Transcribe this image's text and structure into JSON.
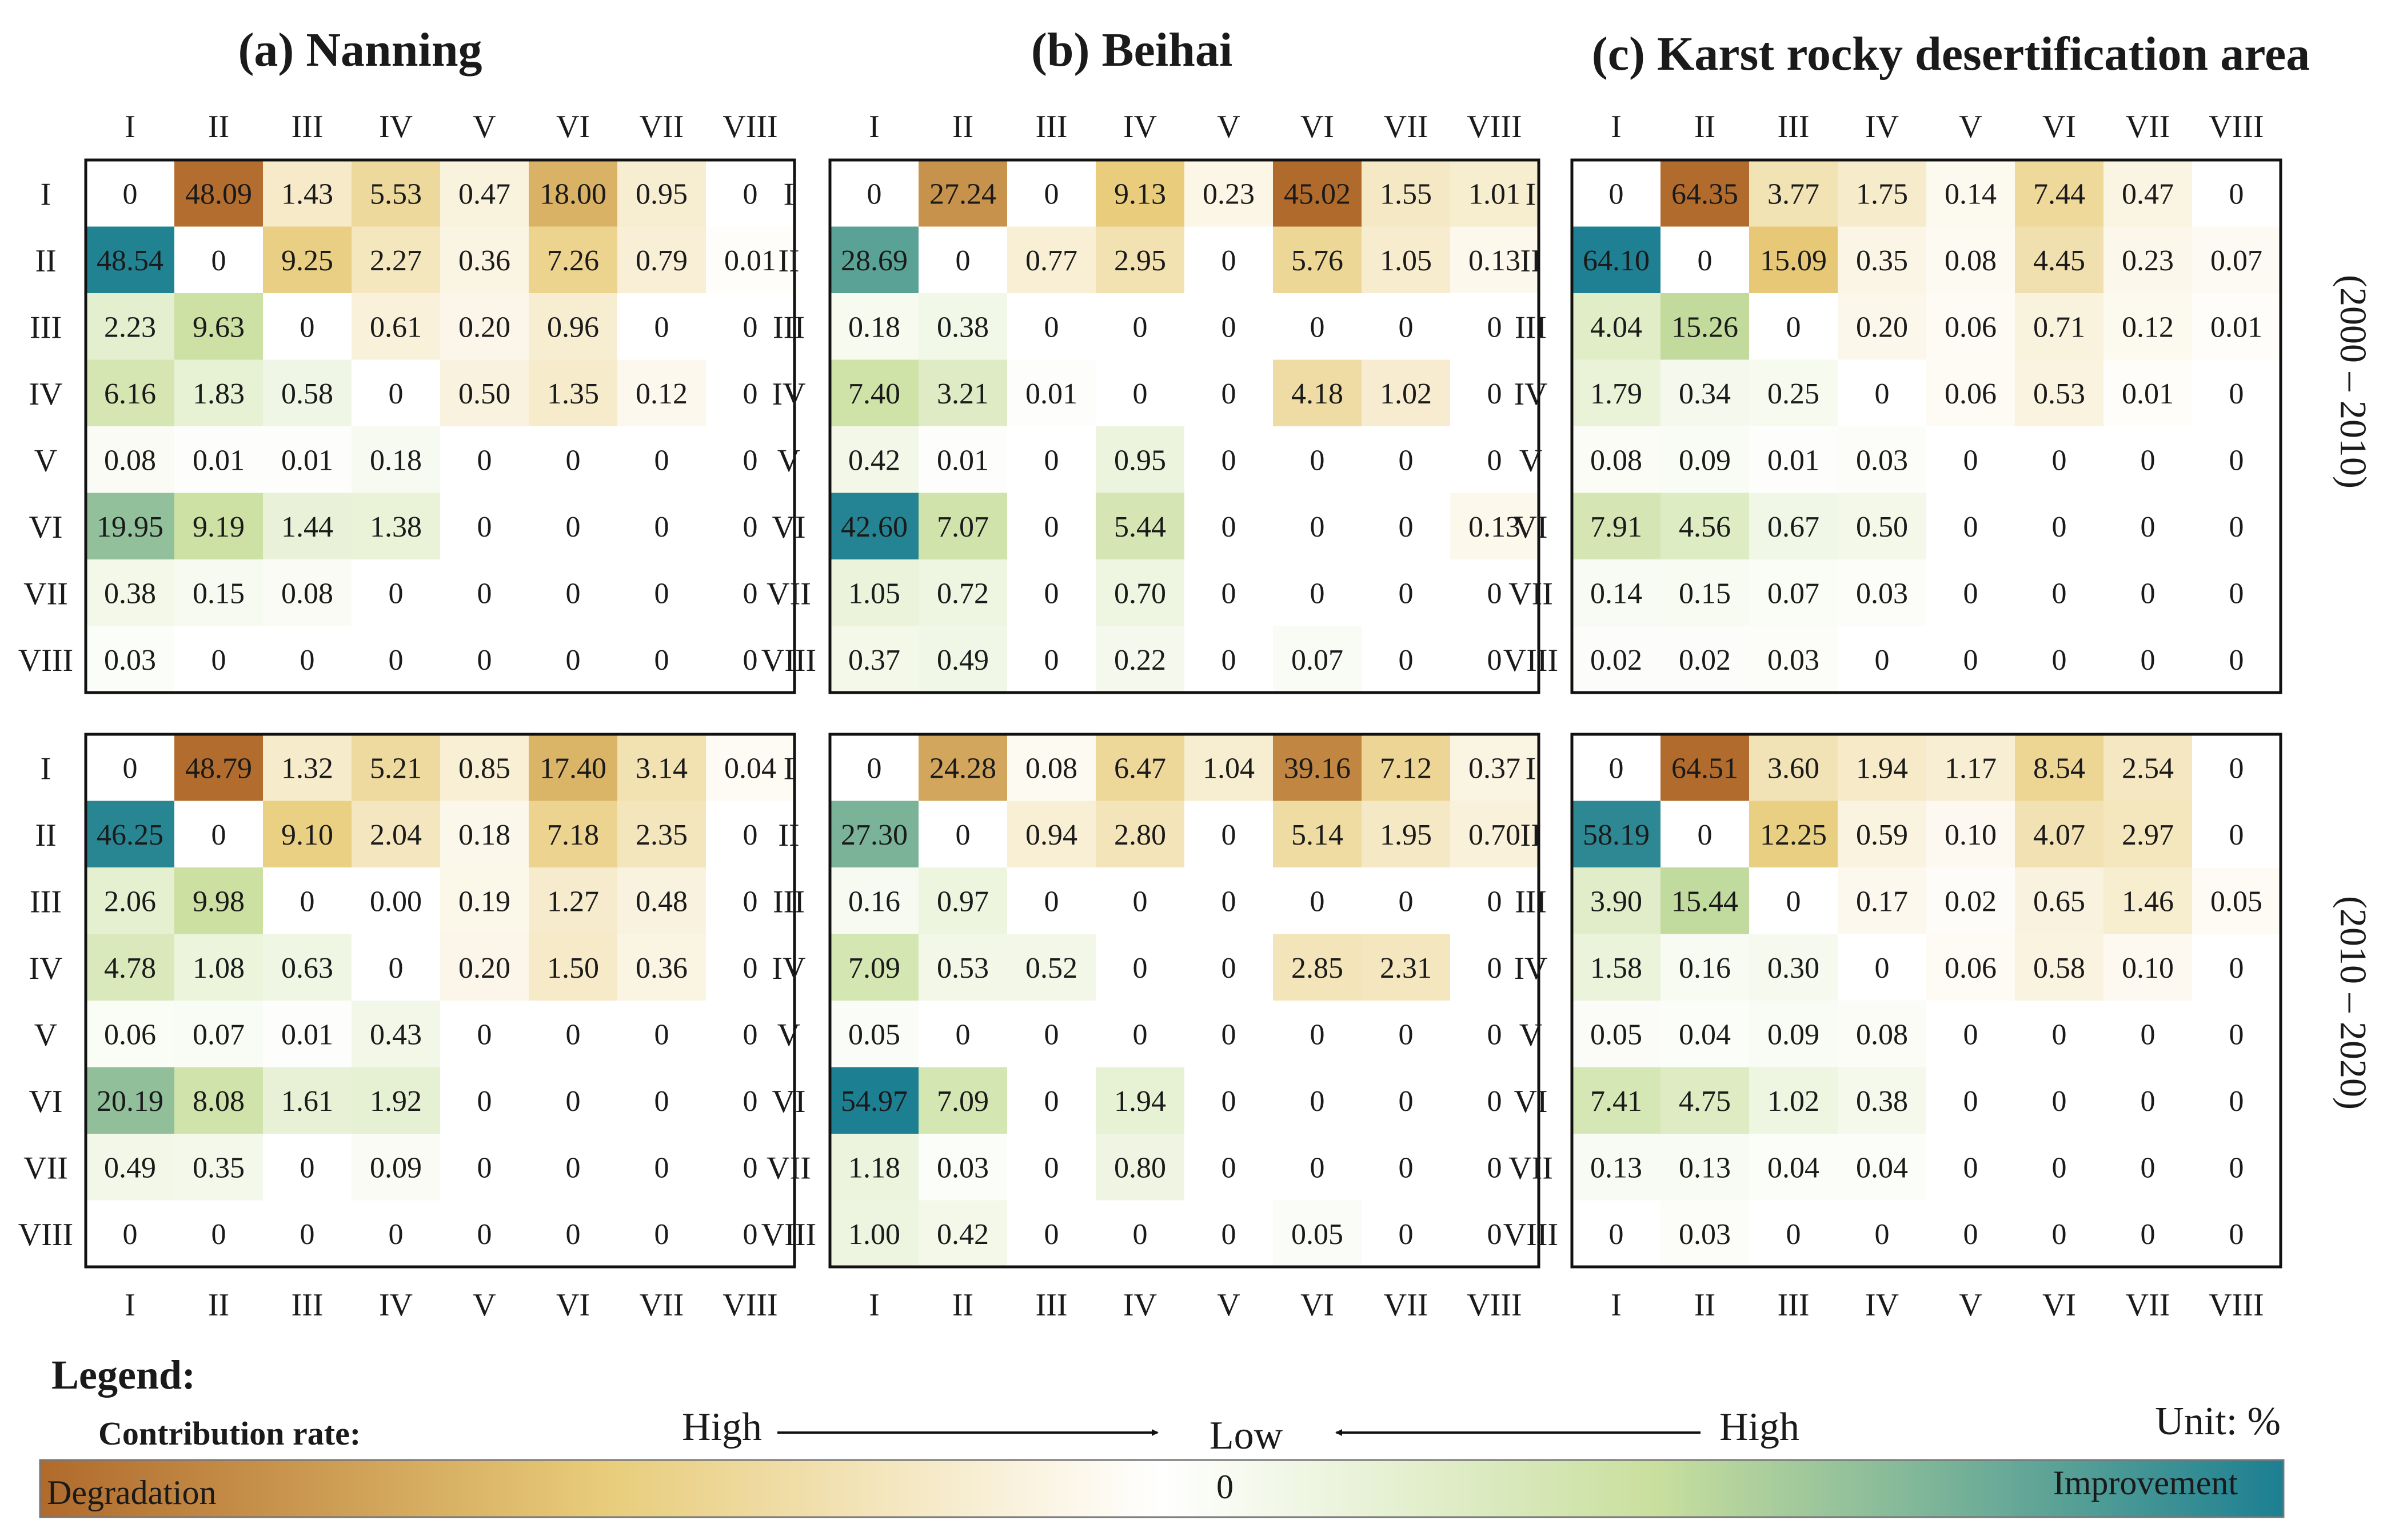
{
  "chart_data": {
    "type": "heatmap",
    "unit": "%",
    "row_categories": [
      "I",
      "II",
      "III",
      "IV",
      "V",
      "VI",
      "VII",
      "VIII"
    ],
    "col_categories": [
      "I",
      "II",
      "III",
      "IV",
      "V",
      "VI",
      "VII",
      "VIII"
    ],
    "panels": [
      {
        "title": "(a) Nanning",
        "region": "Nanning"
      },
      {
        "title": "(b) Beihai",
        "region": "Beihai"
      },
      {
        "title": "(c) Karst rocky desertification area",
        "region": "Karst rocky desertification area"
      }
    ],
    "periods": [
      "(2000 – 2010)",
      "(2010 – 2020)"
    ],
    "matrices": [
      [
        {
          "values": [
            [
              "0",
              "48.09",
              "1.43",
              "5.53",
              "0.47",
              "18.00",
              "0.95",
              "0"
            ],
            [
              "48.54",
              "0",
              "9.25",
              "2.27",
              "0.36",
              "7.26",
              "0.79",
              "0.01"
            ],
            [
              "2.23",
              "9.63",
              "0",
              "0.61",
              "0.20",
              "0.96",
              "0",
              "0"
            ],
            [
              "6.16",
              "1.83",
              "0.58",
              "0",
              "0.50",
              "1.35",
              "0.12",
              "0"
            ],
            [
              "0.08",
              "0.01",
              "0.01",
              "0.18",
              "0",
              "0",
              "0",
              "0"
            ],
            [
              "19.95",
              "9.19",
              "1.44",
              "1.38",
              "0",
              "0",
              "0",
              "0"
            ],
            [
              "0.38",
              "0.15",
              "0.08",
              "0",
              "0",
              "0",
              "0",
              "0"
            ],
            [
              "0.03",
              "0",
              "0",
              "0",
              "0",
              "0",
              "0",
              "0"
            ]
          ],
          "scale_max": 50
        },
        {
          "values": [
            [
              "0",
              "27.24",
              "0",
              "9.13",
              "0.23",
              "45.02",
              "1.55",
              "1.01"
            ],
            [
              "28.69",
              "0",
              "0.77",
              "2.95",
              "0",
              "5.76",
              "1.05",
              "0.13"
            ],
            [
              "0.18",
              "0.38",
              "0",
              "0",
              "0",
              "0",
              "0",
              "0"
            ],
            [
              "7.40",
              "3.21",
              "0.01",
              "0",
              "0",
              "4.18",
              "1.02",
              "0"
            ],
            [
              "0.42",
              "0.01",
              "0",
              "0.95",
              "0",
              "0",
              "0",
              "0"
            ],
            [
              "42.60",
              "7.07",
              "0",
              "5.44",
              "0",
              "0",
              "0",
              "0.13"
            ],
            [
              "1.05",
              "0.72",
              "0",
              "0.70",
              "0",
              "0",
              "0",
              "0"
            ],
            [
              "0.37",
              "0.49",
              "0",
              "0.22",
              "0",
              "0.07",
              "0",
              "0"
            ]
          ],
          "scale_max": 45
        },
        {
          "values": [
            [
              "0",
              "64.35",
              "3.77",
              "1.75",
              "0.14",
              "7.44",
              "0.47",
              "0"
            ],
            [
              "64.10",
              "0",
              "15.09",
              "0.35",
              "0.08",
              "4.45",
              "0.23",
              "0.07"
            ],
            [
              "4.04",
              "15.26",
              "0",
              "0.20",
              "0.06",
              "0.71",
              "0.12",
              "0.01"
            ],
            [
              "1.79",
              "0.34",
              "0.25",
              "0",
              "0.06",
              "0.53",
              "0.01",
              "0"
            ],
            [
              "0.08",
              "0.09",
              "0.01",
              "0.03",
              "0",
              "0",
              "0",
              "0"
            ],
            [
              "7.91",
              "4.56",
              "0.67",
              "0.50",
              "0",
              "0",
              "0",
              "0"
            ],
            [
              "0.14",
              "0.15",
              "0.07",
              "0.03",
              "0",
              "0",
              "0",
              "0"
            ],
            [
              "0.02",
              "0.02",
              "0.03",
              "0",
              "0",
              "0",
              "0",
              "0"
            ]
          ],
          "scale_max": 65
        }
      ],
      [
        {
          "values": [
            [
              "0",
              "48.79",
              "1.32",
              "5.21",
              "0.85",
              "17.40",
              "3.14",
              "0.04"
            ],
            [
              "46.25",
              "0",
              "9.10",
              "2.04",
              "0.18",
              "7.18",
              "2.35",
              "0"
            ],
            [
              "2.06",
              "9.98",
              "0",
              "0.00",
              "0.19",
              "1.27",
              "0.48",
              "0"
            ],
            [
              "4.78",
              "1.08",
              "0.63",
              "0",
              "0.20",
              "1.50",
              "0.36",
              "0"
            ],
            [
              "0.06",
              "0.07",
              "0.01",
              "0.43",
              "0",
              "0",
              "0",
              "0"
            ],
            [
              "20.19",
              "8.08",
              "1.61",
              "1.92",
              "0",
              "0",
              "0",
              "0"
            ],
            [
              "0.49",
              "0.35",
              "0",
              "0.09",
              "0",
              "0",
              "0",
              "0"
            ],
            [
              "0",
              "0",
              "0",
              "0",
              "0",
              "0",
              "0",
              "0"
            ]
          ],
          "scale_max": 50
        },
        {
          "values": [
            [
              "0",
              "24.28",
              "0.08",
              "6.47",
              "1.04",
              "39.16",
              "7.12",
              "0.37"
            ],
            [
              "27.30",
              "0",
              "0.94",
              "2.80",
              "0",
              "5.14",
              "1.95",
              "0.70"
            ],
            [
              "0.16",
              "0.97",
              "0",
              "0",
              "0",
              "0",
              "0",
              "0"
            ],
            [
              "7.09",
              "0.53",
              "0.52",
              "0",
              "0",
              "2.85",
              "2.31",
              "0"
            ],
            [
              "0.05",
              "0",
              "0",
              "0",
              "0",
              "0",
              "0",
              "0"
            ],
            [
              "54.97",
              "7.09",
              "0",
              "1.94",
              "0",
              "0",
              "0",
              "0"
            ],
            [
              "1.18",
              "0.03",
              "0",
              "0.80",
              "0",
              "0",
              "0",
              "0"
            ],
            [
              "1.00",
              "0.42",
              "0",
              "0",
              "0",
              "0.05",
              "0",
              "0"
            ]
          ],
          "scale_max": 55
        },
        {
          "values": [
            [
              "0",
              "64.51",
              "3.60",
              "1.94",
              "1.17",
              "8.54",
              "2.54",
              "0"
            ],
            [
              "58.19",
              "0",
              "12.25",
              "0.59",
              "0.10",
              "4.07",
              "2.97",
              "0"
            ],
            [
              "3.90",
              "15.44",
              "0",
              "0.17",
              "0.02",
              "0.65",
              "1.46",
              "0.05"
            ],
            [
              "1.58",
              "0.16",
              "0.30",
              "0",
              "0.06",
              "0.58",
              "0.10",
              "0"
            ],
            [
              "0.05",
              "0.04",
              "0.09",
              "0.08",
              "0",
              "0",
              "0",
              "0"
            ],
            [
              "7.41",
              "4.75",
              "1.02",
              "0.38",
              "0",
              "0",
              "0",
              "0"
            ],
            [
              "0.13",
              "0.13",
              "0.04",
              "0.04",
              "0",
              "0",
              "0",
              "0"
            ],
            [
              "0",
              "0.03",
              "0",
              "0",
              "0",
              "0",
              "0",
              "0"
            ]
          ],
          "scale_max": 65
        }
      ]
    ],
    "color_rule": "cells above the diagonal (column index > row index) are Degradation (brown scale); cells below the diagonal are Improvement (teal scale); intensity proportional to value"
  },
  "legend": {
    "title": "Legend:",
    "subtitle": "Contribution rate:",
    "high_left": "High",
    "low": "Low",
    "high_right": "High",
    "unit": "Unit: %",
    "degradation_label": "Degradation",
    "zero_label": "0",
    "improvement_label": "Improvement"
  },
  "colors": {
    "degradation_high": "#b06a2c",
    "degradation_mid": "#e8cc7a",
    "neutral": "#ffffff",
    "improvement_mid": "#c9df9e",
    "improvement_high": "#1c7f92",
    "frame": "#111111"
  }
}
